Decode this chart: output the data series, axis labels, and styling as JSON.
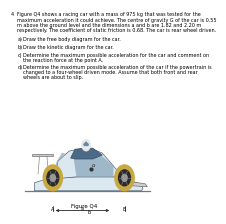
{
  "question_num": "4",
  "text_lines": [
    "Figure Q4 shows a racing car with a mass of 975 kg that was tested for the",
    "maximum acceleration it could achieve. The centre of gravity G of the car is 0.55",
    "m above the ground level and the dimensions a and b are 1.82 and 2.20 m",
    "respectively. The coefficient of static friction is 0.68. The car is rear wheel driven."
  ],
  "part_a_label": "a)",
  "part_a_text": "Draw the free body diagram for the car.",
  "part_b_label": "b)",
  "part_b_text": "Draw the kinetic diagram for the car.",
  "part_c_label": "c)",
  "part_c_lines": [
    "Determine the maximum possible acceleration for the car and comment on",
    "the reaction force at the point A."
  ],
  "part_d_label": "d)",
  "part_d_lines": [
    "Determine the maximum possible acceleration of the car if the powertrain is",
    "changed to a four-wheel driven mode. Assume that both front and rear",
    "wheels are about to slip."
  ],
  "figure_label": "Figure Q4",
  "bg_color": "#ffffff",
  "text_color": "#000000",
  "car_body_light": "#dce8f0",
  "car_body_mid": "#b8cdd8",
  "car_body_blue": "#8aa8be",
  "car_body_dark": "#6688a0",
  "wheel_tyre": "#c8a840",
  "wheel_rim_dark": "#2a2a2a",
  "wheel_rim_light": "#999999",
  "ground_color": "#777777",
  "dim_color": "#222222",
  "label_color": "#000000",
  "font_size_text": 3.5,
  "font_size_label": 3.5,
  "font_size_fig_label": 4.0
}
